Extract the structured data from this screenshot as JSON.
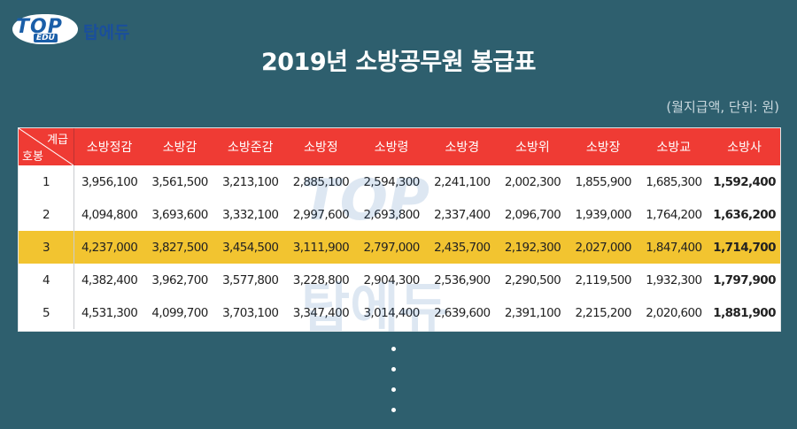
{
  "brand": {
    "logo_top": "TOP",
    "logo_edu": "EDU",
    "logo_text": "탑에듀",
    "primary_color": "#1a5ea8"
  },
  "page": {
    "title": "2019년 소방공무원 봉급표",
    "unit_note": "(월지급액, 단위: 원)",
    "background_color": "#2e5f6e",
    "header_color": "#ef3b34",
    "highlight_color": "#f2c430"
  },
  "table": {
    "corner_top": "계급",
    "corner_bottom": "호봉",
    "columns": [
      "소방정감",
      "소방감",
      "소방준감",
      "소방정",
      "소방령",
      "소방경",
      "소방위",
      "소방장",
      "소방교",
      "소방사"
    ],
    "rows": [
      {
        "hobong": "1",
        "values": [
          "3,956,100",
          "3,561,500",
          "3,213,100",
          "2,885,100",
          "2,594,300",
          "2,241,100",
          "2,002,300",
          "1,855,900",
          "1,685,300",
          "1,592,400"
        ]
      },
      {
        "hobong": "2",
        "values": [
          "4,094,800",
          "3,693,600",
          "3,332,100",
          "2,997,600",
          "2,693,800",
          "2,337,400",
          "2,096,700",
          "1,939,000",
          "1,764,200",
          "1,636,200"
        ]
      },
      {
        "hobong": "3",
        "values": [
          "4,237,000",
          "3,827,500",
          "3,454,500",
          "3,111,900",
          "2,797,000",
          "2,435,700",
          "2,192,300",
          "2,027,000",
          "1,847,400",
          "1,714,700"
        ]
      },
      {
        "hobong": "4",
        "values": [
          "4,382,400",
          "3,962,700",
          "3,577,800",
          "3,228,800",
          "2,904,300",
          "2,536,900",
          "2,290,500",
          "2,119,500",
          "1,932,300",
          "1,797,900"
        ]
      },
      {
        "hobong": "5",
        "values": [
          "4,531,300",
          "4,099,700",
          "3,703,100",
          "3,347,400",
          "3,014,400",
          "2,639,600",
          "2,391,100",
          "2,215,200",
          "2,020,600",
          "1,881,900"
        ]
      }
    ],
    "highlighted_row_index": 2
  }
}
